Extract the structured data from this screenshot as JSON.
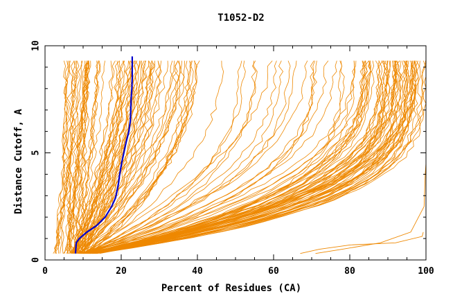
{
  "chart_data": {
    "type": "line",
    "title": "T1052-D2",
    "xlabel": "Percent of Residues (CA)",
    "ylabel": "Distance Cutoff, A",
    "xlim": [
      0,
      100
    ],
    "ylim": [
      0,
      10
    ],
    "x_ticks": [
      0,
      20,
      40,
      60,
      80,
      100
    ],
    "y_ticks": [
      0,
      5,
      10
    ],
    "grid": false,
    "colors": {
      "models": "#ee8800",
      "highlight": "#0000cc"
    },
    "highlight_series": {
      "x": [
        8.0,
        8.2,
        9.0,
        11.0,
        13.5,
        15.8,
        17.5,
        18.5,
        19.0,
        19.3,
        19.5,
        19.8,
        20.2,
        20.7,
        21.3,
        22.0,
        22.4,
        22.5,
        22.6,
        22.8,
        22.9,
        22.9,
        22.9
      ],
      "y": [
        0.3,
        0.8,
        1.0,
        1.3,
        1.6,
        2.0,
        2.5,
        2.9,
        3.3,
        3.6,
        3.9,
        4.2,
        4.6,
        5.0,
        5.5,
        6.0,
        6.5,
        7.0,
        7.5,
        8.0,
        8.5,
        9.0,
        9.5
      ]
    },
    "model_bundles": [
      {
        "count": 20,
        "x_at_0_3": [
          2.5,
          7.5
        ],
        "x_at_9_5": [
          5.0,
          12.0
        ],
        "shape": 1.2
      },
      {
        "count": 30,
        "x_at_0_3": [
          6.5,
          10.0
        ],
        "x_at_9_5": [
          10.0,
          30.0
        ],
        "shape": 1.5
      },
      {
        "count": 22,
        "x_at_0_3": [
          7.5,
          11.0
        ],
        "x_at_9_5": [
          20.0,
          38.0
        ],
        "shape": 2.0
      },
      {
        "count": 18,
        "x_at_0_3": [
          8.5,
          12.0
        ],
        "x_at_9_5": [
          36.0,
          70.0
        ],
        "shape": 2.4
      },
      {
        "count": 25,
        "x_at_0_3": [
          9.0,
          13.0
        ],
        "x_at_9_5": [
          70.0,
          90.0
        ],
        "shape": 3.0
      },
      {
        "count": 45,
        "x_at_0_3": [
          9.0,
          14.0
        ],
        "x_at_9_5": [
          88.0,
          100.0
        ],
        "shape": 3.6
      }
    ],
    "outlier_curves": [
      {
        "x": [
          67.0,
          72.0,
          80.0,
          92.0,
          99.0,
          99.3
        ],
        "y": [
          0.3,
          0.5,
          0.7,
          0.8,
          1.1,
          1.3
        ]
      },
      {
        "x": [
          71.0,
          78.0,
          88.0,
          96.0,
          99.5,
          99.8,
          100.0
        ],
        "y": [
          0.3,
          0.5,
          0.8,
          1.3,
          2.5,
          4.0,
          4.5
        ]
      }
    ]
  }
}
